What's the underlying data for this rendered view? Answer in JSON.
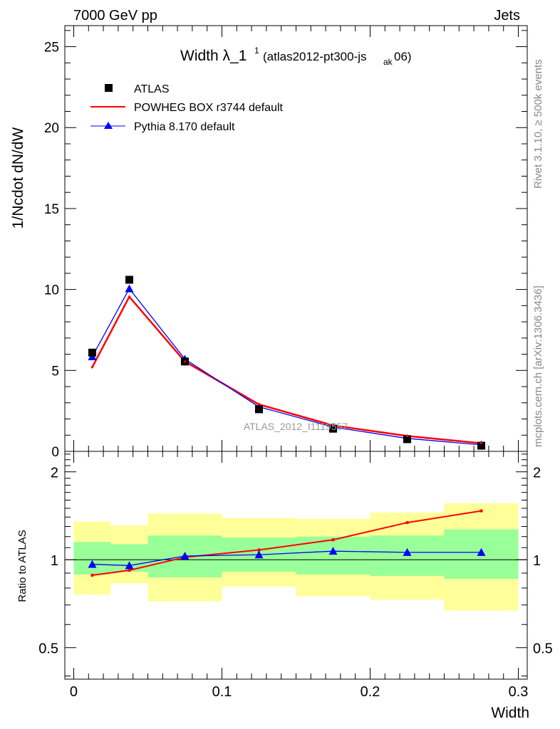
{
  "header": {
    "left": "7000 GeV pp",
    "right": "Jets"
  },
  "side_labels": {
    "rivet": "Rivet 3.1.10, ≥ 500k events",
    "mcplots": "mcplots.cern.ch [arXiv:1306.3436]"
  },
  "chart_data": [
    {
      "type": "line",
      "panel": "main",
      "title_main": "Width λ_1",
      "title_sup": "1",
      "title_paren": "(atlas2012-pt300-js",
      "title_sub": "ak",
      "title_tail": "06)",
      "ylabel": "1/Ncdot dN/dW",
      "watermark": "ATLAS_2012_I1119557",
      "ylim": [
        0,
        26.3
      ],
      "yticks": [
        0,
        5,
        10,
        15,
        20,
        25
      ],
      "ytick_labels": [
        "0",
        "5",
        "10",
        "15",
        "20",
        "25"
      ],
      "x": [
        0.0125,
        0.0375,
        0.075,
        0.125,
        0.175,
        0.225,
        0.275
      ],
      "series": [
        {
          "name": "ATLAS",
          "style": "markers",
          "color": "#000000",
          "values": [
            6.1,
            10.6,
            5.55,
            2.6,
            1.4,
            0.75,
            0.35
          ]
        },
        {
          "name": "POWHEG BOX r3744 default",
          "style": "line",
          "color": "#ff0000",
          "values": [
            5.2,
            9.55,
            5.55,
            2.9,
            1.6,
            0.95,
            0.5
          ]
        },
        {
          "name": "Pythia 8.170 default",
          "style": "line-triangle",
          "color": "#0000ff",
          "values": [
            5.85,
            10.05,
            5.7,
            2.75,
            1.5,
            0.8,
            0.4
          ]
        }
      ]
    },
    {
      "type": "line",
      "panel": "ratio",
      "ylabel": "Ratio to ATLAS",
      "xlabel": "Width",
      "xlim": [
        -0.006,
        0.306
      ],
      "xticks": [
        0,
        0.1,
        0.2,
        0.3
      ],
      "xtick_labels": [
        "0",
        "0.1",
        "0.2",
        "0.3"
      ],
      "ylim": [
        0.39,
        2.35
      ],
      "yscale": "log",
      "yticks": [
        0.5,
        1,
        2
      ],
      "ytick_labels": [
        "0.5",
        "1",
        "2"
      ],
      "bins": [
        [
          0,
          0.025
        ],
        [
          0.025,
          0.05
        ],
        [
          0.05,
          0.1
        ],
        [
          0.1,
          0.15
        ],
        [
          0.15,
          0.2
        ],
        [
          0.2,
          0.25
        ],
        [
          0.25,
          0.3
        ]
      ],
      "band_outer": [
        [
          0.76,
          1.35
        ],
        [
          0.83,
          1.31
        ],
        [
          0.72,
          1.44
        ],
        [
          0.81,
          1.39
        ],
        [
          0.75,
          1.38
        ],
        [
          0.73,
          1.45
        ],
        [
          0.67,
          1.56
        ]
      ],
      "band_inner": [
        [
          0.89,
          1.15
        ],
        [
          0.91,
          1.13
        ],
        [
          0.87,
          1.21
        ],
        [
          0.91,
          1.19
        ],
        [
          0.89,
          1.2
        ],
        [
          0.88,
          1.21
        ],
        [
          0.86,
          1.27
        ]
      ],
      "series": [
        {
          "name": "POWHEG BOX r3744 default",
          "color": "#ff0000",
          "values": [
            0.885,
            0.92,
            1.02,
            1.08,
            1.17,
            1.34,
            1.47
          ]
        },
        {
          "name": "Pythia 8.170 default",
          "color": "#0000ff",
          "values": [
            0.965,
            0.955,
            1.03,
            1.04,
            1.07,
            1.06,
            1.06
          ]
        }
      ]
    }
  ],
  "colors": {
    "band_outer": "#ffff99",
    "band_inner": "#99ff99",
    "data": "#000000",
    "powheg": "#ff0000",
    "pythia": "#0000ff"
  }
}
